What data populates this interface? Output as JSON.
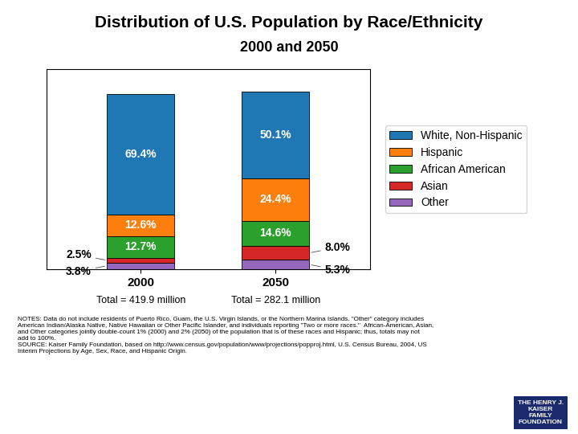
{
  "chart_data": {
    "type": "bar",
    "stacked": true,
    "title": "Distribution of U.S. Population by Race/Ethnicity",
    "subtitle": "2000 and 2050",
    "categories": [
      "2000",
      "2050"
    ],
    "series": [
      {
        "name": "White, Non-Hispanic",
        "values": [
          69.4,
          50.1
        ],
        "value_labels": [
          "69.4%",
          "50.1%"
        ]
      },
      {
        "name": "Hispanic",
        "values": [
          12.6,
          24.4
        ],
        "value_labels": [
          "12.6%",
          "24.4%"
        ]
      },
      {
        "name": "African American",
        "values": [
          12.7,
          14.6
        ],
        "value_labels": [
          "12.7%",
          "14.6%"
        ]
      },
      {
        "name": "Asian",
        "values": [
          2.5,
          8.0
        ],
        "value_labels": [
          "2.5%",
          "8.0%"
        ]
      },
      {
        "name": "Other",
        "values": [
          3.8,
          5.3
        ],
        "value_labels": [
          "3.8%",
          "5.3%"
        ]
      }
    ],
    "ylim": [
      0,
      115
    ],
    "yticks": [],
    "tick_labels": "x",
    "data_labels": true,
    "legend": "right",
    "annotations": [
      {
        "text": "Total = 419.9 million",
        "category": "2000"
      },
      {
        "text": "Total = 282.1 million",
        "category": "2050"
      }
    ],
    "notes": "NOTES: Data do not include residents of Puerto Rico, Guam, the U.S. Virgin Islands, or the Northern Marina Islands. \"Other\" category includes\nAmerican Indian/Alaska Native, Native Hawaiian or Other Pacific Islander, and individuals reporting \"Two or more races.\"  African-American, Asian,\nand Other categories jointly double-count 1% (2000) and 2% (2050) of the population that is of these races and Hispanic; thus, totals may not\nadd to 100%.\nSOURCE: Kaiser Family Foundation, based on http://www.census.gov/population/www/projections/popproj.html, U.S. Census Bureau, 2004, US\nInterim Projections by Age, Sex, Race, and Hispanic Origin.",
    "logo": "THE HENRY J.\nKAISER\nFAMILY\nFOUNDATION"
  }
}
